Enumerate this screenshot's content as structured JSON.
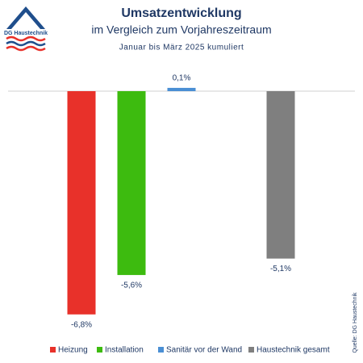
{
  "logo_text": "DG Haustechnik",
  "source": "Quelle: DG Haustechnik",
  "chart_data": {
    "type": "bar",
    "title": "Umsatzentwicklung",
    "subtitle": "im Vergleich zum Vorjahreszeitraum",
    "note": "Januar bis März 2025 kumuliert",
    "series": [
      {
        "name": "Heizung",
        "color": "#e8312a",
        "values": [
          -6.8
        ],
        "value_labels": [
          "-6,8%"
        ]
      },
      {
        "name": "Installation",
        "color": "#3dbb0f",
        "values": [
          -5.6
        ],
        "value_labels": [
          "-5,6%"
        ]
      },
      {
        "name": "Sanitär vor der Wand",
        "color": "#4a8fd4",
        "values": [
          0.1
        ],
        "value_labels": [
          "0,1%"
        ]
      },
      {
        "name": "Haustechnik gesamt",
        "color": "#7f7f7f",
        "values": [
          -5.1
        ],
        "value_labels": [
          "-5,1%"
        ]
      }
    ],
    "legend": "bottom"
  }
}
